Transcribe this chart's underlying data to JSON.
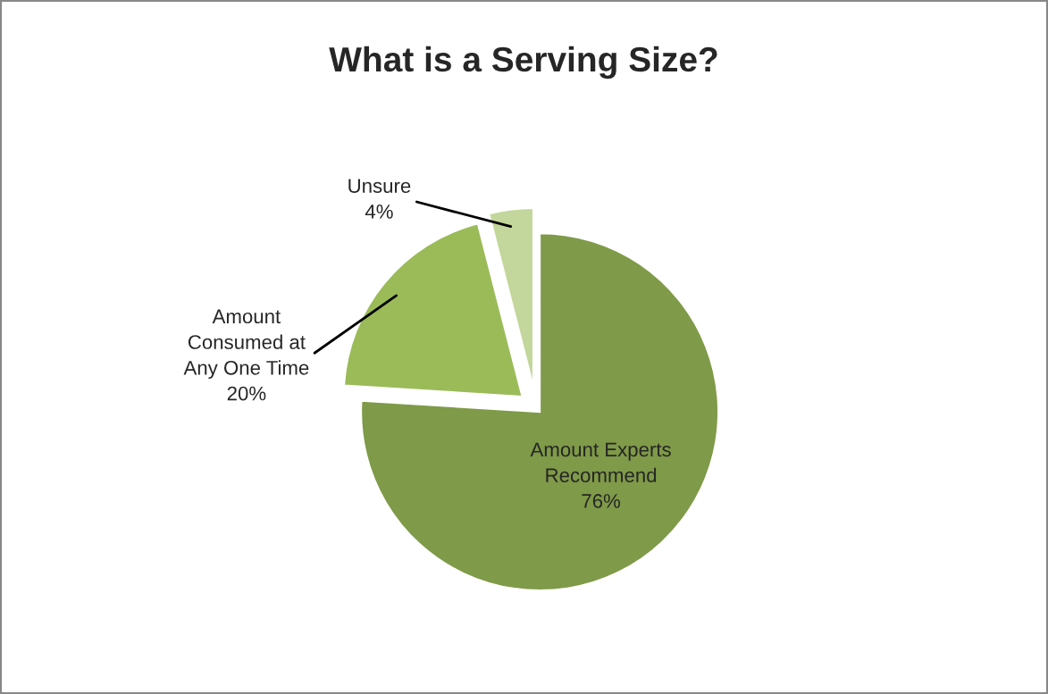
{
  "chart_data": {
    "type": "pie",
    "title": "What is a Serving Size?",
    "categories": [
      "Amount Experts\nRecommend",
      "Amount\nConsumed at\nAny One Time",
      "Unsure"
    ],
    "values": [
      76,
      20,
      4
    ],
    "value_labels": [
      "76%",
      "20%",
      "4%"
    ],
    "colors": [
      "#7f9a48",
      "#9bbb59",
      "#c3d69b"
    ]
  }
}
